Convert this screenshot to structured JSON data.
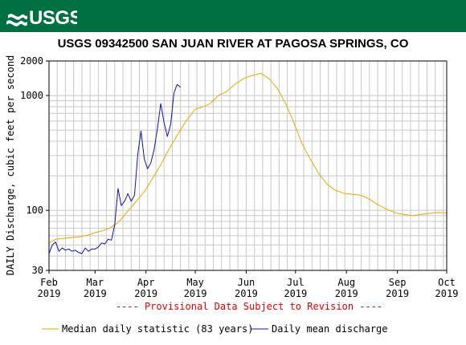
{
  "logo_text": "USGS",
  "chart_data": {
    "type": "line",
    "title": "USGS 09342500 SAN JUAN RIVER AT PAGOSA SPRINGS, CO",
    "ylabel": "DAILY Discharge, cubic feet per second",
    "xlabel": "",
    "yscale": "log",
    "ylim": [
      30,
      2000
    ],
    "xlim": [
      "2019-02-01",
      "2019-10-01"
    ],
    "y_ticks": [
      30,
      100,
      1000,
      2000
    ],
    "x_ticks": [
      {
        "date": "2019-02-01",
        "label": [
          "Feb",
          "2019"
        ]
      },
      {
        "date": "2019-03-01",
        "label": [
          "Mar",
          "2019"
        ]
      },
      {
        "date": "2019-04-01",
        "label": [
          "Apr",
          "2019"
        ]
      },
      {
        "date": "2019-05-01",
        "label": [
          "May",
          "2019"
        ]
      },
      {
        "date": "2019-06-01",
        "label": [
          "Jun",
          "2019"
        ]
      },
      {
        "date": "2019-07-01",
        "label": [
          "Jul",
          "2019"
        ]
      },
      {
        "date": "2019-08-01",
        "label": [
          "Aug",
          "2019"
        ]
      },
      {
        "date": "2019-09-01",
        "label": [
          "Sep",
          "2019"
        ]
      },
      {
        "date": "2019-10-01",
        "label": [
          "Oct",
          "2019"
        ]
      }
    ],
    "grid": true,
    "annotation": "---- Provisional Data Subject to Revision ----",
    "legend_position": "bottom",
    "series": [
      {
        "name": "Median daily statistic (83 years)",
        "color": "#e8a800",
        "points": [
          [
            "2019-02-01",
            52
          ],
          [
            "2019-02-05",
            56
          ],
          [
            "2019-02-10",
            57
          ],
          [
            "2019-02-15",
            58
          ],
          [
            "2019-02-20",
            59
          ],
          [
            "2019-02-25",
            61
          ],
          [
            "2019-03-01",
            64
          ],
          [
            "2019-03-05",
            66
          ],
          [
            "2019-03-10",
            70
          ],
          [
            "2019-03-15",
            78
          ],
          [
            "2019-03-20",
            95
          ],
          [
            "2019-03-25",
            115
          ],
          [
            "2019-03-31",
            145
          ],
          [
            "2019-04-05",
            190
          ],
          [
            "2019-04-10",
            250
          ],
          [
            "2019-04-15",
            340
          ],
          [
            "2019-04-20",
            450
          ],
          [
            "2019-04-25",
            590
          ],
          [
            "2019-05-01",
            760
          ],
          [
            "2019-05-06",
            800
          ],
          [
            "2019-05-10",
            850
          ],
          [
            "2019-05-15",
            1000
          ],
          [
            "2019-05-20",
            1080
          ],
          [
            "2019-05-25",
            1250
          ],
          [
            "2019-05-31",
            1420
          ],
          [
            "2019-06-05",
            1500
          ],
          [
            "2019-06-10",
            1560
          ],
          [
            "2019-06-15",
            1400
          ],
          [
            "2019-06-20",
            1150
          ],
          [
            "2019-06-25",
            850
          ],
          [
            "2019-06-30",
            580
          ],
          [
            "2019-07-05",
            380
          ],
          [
            "2019-07-10",
            280
          ],
          [
            "2019-07-15",
            210
          ],
          [
            "2019-07-20",
            170
          ],
          [
            "2019-07-25",
            150
          ],
          [
            "2019-07-31",
            140
          ],
          [
            "2019-08-05",
            138
          ],
          [
            "2019-08-10",
            135
          ],
          [
            "2019-08-15",
            125
          ],
          [
            "2019-08-20",
            112
          ],
          [
            "2019-08-25",
            103
          ],
          [
            "2019-08-31",
            95
          ],
          [
            "2019-09-05",
            92
          ],
          [
            "2019-09-10",
            90
          ],
          [
            "2019-09-15",
            92
          ],
          [
            "2019-09-20",
            94
          ],
          [
            "2019-09-25",
            96
          ],
          [
            "2019-10-01",
            95
          ]
        ]
      },
      {
        "name": "Daily mean discharge",
        "color": "#1010b0",
        "points": [
          [
            "2019-02-01",
            42
          ],
          [
            "2019-02-03",
            50
          ],
          [
            "2019-02-05",
            53
          ],
          [
            "2019-02-07",
            44
          ],
          [
            "2019-02-09",
            47
          ],
          [
            "2019-02-11",
            45
          ],
          [
            "2019-02-13",
            46
          ],
          [
            "2019-02-15",
            44
          ],
          [
            "2019-02-17",
            45
          ],
          [
            "2019-02-19",
            43
          ],
          [
            "2019-02-21",
            42
          ],
          [
            "2019-02-23",
            47
          ],
          [
            "2019-02-25",
            44
          ],
          [
            "2019-02-27",
            46
          ],
          [
            "2019-03-01",
            46
          ],
          [
            "2019-03-03",
            48
          ],
          [
            "2019-03-05",
            52
          ],
          [
            "2019-03-07",
            51
          ],
          [
            "2019-03-09",
            56
          ],
          [
            "2019-03-11",
            55
          ],
          [
            "2019-03-13",
            75
          ],
          [
            "2019-03-15",
            155
          ],
          [
            "2019-03-17",
            110
          ],
          [
            "2019-03-19",
            120
          ],
          [
            "2019-03-21",
            140
          ],
          [
            "2019-03-23",
            120
          ],
          [
            "2019-03-25",
            135
          ],
          [
            "2019-03-27",
            310
          ],
          [
            "2019-03-29",
            490
          ],
          [
            "2019-03-31",
            280
          ],
          [
            "2019-04-02",
            230
          ],
          [
            "2019-04-04",
            260
          ],
          [
            "2019-04-06",
            340
          ],
          [
            "2019-04-08",
            520
          ],
          [
            "2019-04-10",
            850
          ],
          [
            "2019-04-12",
            580
          ],
          [
            "2019-04-14",
            440
          ],
          [
            "2019-04-16",
            560
          ],
          [
            "2019-04-18",
            1050
          ],
          [
            "2019-04-20",
            1250
          ],
          [
            "2019-04-22",
            1180
          ]
        ]
      }
    ]
  }
}
